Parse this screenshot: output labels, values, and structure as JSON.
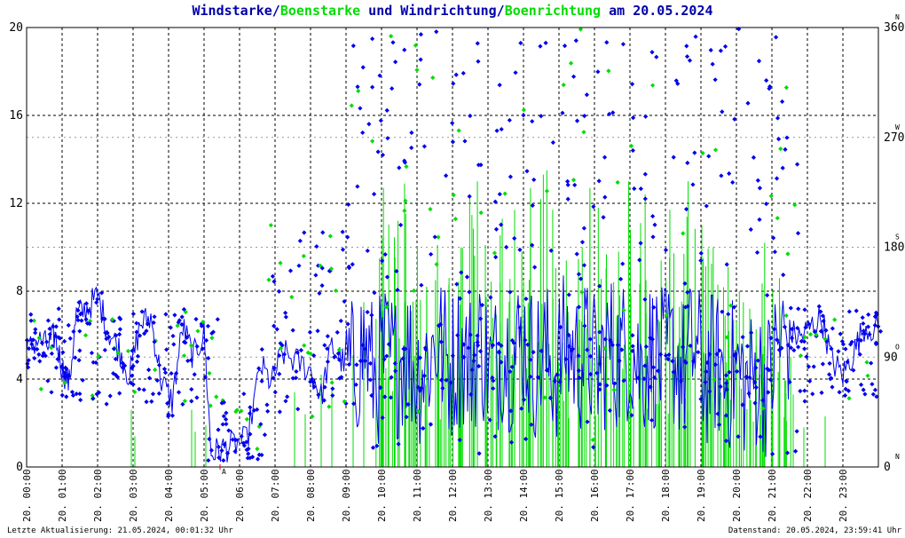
{
  "title": {
    "part1": "Windstarke",
    "sep1": "/",
    "part2": "Boenstarke",
    "part3": " und ",
    "part4": "Windrichtung",
    "sep2": "/",
    "part5": "Boenrichtung",
    "part6": " am 20.05.2024"
  },
  "colors": {
    "speed": "#0000ee",
    "gust": "#00dd00",
    "title_dark": "#0000aa",
    "grid": "#000000",
    "marker": "#ff0000"
  },
  "footer": {
    "left": "Letzte Aktualisierung: 21.05.2024, 00:01:32 Uhr",
    "right": "Datenstand: 20.05.2024, 23:59:41 Uhr"
  },
  "marker_label": "A",
  "chart_data": {
    "type": "scatter",
    "x_axis": {
      "unit": "hour",
      "range": [
        0,
        24
      ],
      "tick_labels": [
        "20. 00:00",
        "20. 01:00",
        "20. 02:00",
        "20. 03:00",
        "20. 04:00",
        "20. 05:00",
        "20. 06:00",
        "20. 07:00",
        "20. 08:00",
        "20. 09:00",
        "20. 10:00",
        "20. 11:00",
        "20. 12:00",
        "20. 13:00",
        "20. 14:00",
        "20. 15:00",
        "20. 16:00",
        "20. 17:00",
        "20. 18:00",
        "20. 19:00",
        "20. 20:00",
        "20. 21:00",
        "20. 22:00",
        "20. 23:00"
      ]
    },
    "y_left": {
      "range": [
        0,
        20
      ],
      "ticks": [
        "0",
        "4",
        "8",
        "12",
        "16",
        "20"
      ]
    },
    "y_right": {
      "range": [
        0,
        360
      ],
      "ticks": [
        "0",
        "90",
        "180",
        "270",
        "360"
      ],
      "compass": [
        "N",
        "O",
        "S",
        "W",
        "N"
      ]
    },
    "grid": true,
    "marker_hour": 5.45,
    "speed_segments": [
      [
        0.0,
        5.2
      ],
      [
        0.3,
        5.8
      ],
      [
        0.6,
        5.5
      ],
      [
        0.8,
        6.0
      ],
      [
        1.0,
        4.5
      ],
      [
        1.2,
        3.8
      ],
      [
        1.4,
        6.9
      ],
      [
        1.7,
        7.2
      ],
      [
        2.0,
        7.8
      ],
      [
        2.3,
        6.2
      ],
      [
        2.6,
        5.4
      ],
      [
        2.9,
        4.1
      ],
      [
        3.2,
        6.5
      ],
      [
        3.5,
        6.8
      ],
      [
        3.8,
        3.9
      ],
      [
        4.1,
        3.0
      ],
      [
        4.4,
        6.4
      ],
      [
        4.7,
        5.0
      ],
      [
        5.0,
        6.1
      ],
      [
        5.2,
        0.6
      ],
      [
        5.5,
        0.8
      ],
      [
        5.8,
        1.0
      ],
      [
        6.2,
        1.2
      ],
      [
        6.6,
        4.6
      ],
      [
        6.9,
        3.8
      ],
      [
        7.2,
        5.2
      ],
      [
        7.6,
        4.8
      ],
      [
        8.0,
        4.4
      ],
      [
        8.3,
        3.2
      ],
      [
        8.6,
        5.5
      ],
      [
        8.9,
        4.8
      ],
      [
        9.2,
        4.2
      ],
      [
        9.5,
        5.6
      ],
      [
        9.8,
        4.0
      ],
      [
        10.1,
        5.0
      ],
      [
        10.4,
        4.6
      ],
      [
        10.7,
        5.4
      ],
      [
        11.0,
        4.2
      ],
      [
        11.3,
        4.9
      ],
      [
        11.6,
        5.8
      ],
      [
        11.9,
        4.5
      ],
      [
        12.2,
        5.2
      ],
      [
        12.5,
        4.7
      ],
      [
        12.8,
        5.6
      ],
      [
        13.1,
        4.2
      ],
      [
        13.4,
        5.4
      ],
      [
        13.7,
        4.9
      ],
      [
        14.0,
        5.8
      ],
      [
        14.3,
        4.6
      ],
      [
        14.6,
        5.1
      ],
      [
        14.9,
        4.4
      ],
      [
        15.2,
        5.7
      ],
      [
        15.5,
        4.8
      ],
      [
        15.8,
        5.2
      ],
      [
        16.1,
        4.3
      ],
      [
        16.4,
        5.5
      ],
      [
        16.7,
        4.9
      ],
      [
        17.0,
        5.6
      ],
      [
        17.3,
        4.5
      ],
      [
        17.6,
        5.3
      ],
      [
        17.9,
        4.7
      ],
      [
        18.2,
        5.2
      ],
      [
        18.5,
        4.3
      ],
      [
        18.8,
        5.5
      ],
      [
        19.1,
        4.1
      ],
      [
        19.4,
        4.8
      ],
      [
        19.7,
        3.9
      ],
      [
        20.0,
        4.5
      ],
      [
        20.3,
        3.6
      ],
      [
        20.6,
        4.2
      ],
      [
        20.9,
        3.8
      ],
      [
        21.2,
        5.6
      ],
      [
        21.5,
        6.1
      ],
      [
        21.8,
        5.9
      ],
      [
        22.1,
        6.4
      ],
      [
        22.4,
        6.8
      ],
      [
        22.7,
        4.8
      ],
      [
        23.0,
        4.2
      ],
      [
        23.3,
        5.2
      ],
      [
        23.6,
        6.4
      ],
      [
        24.0,
        6.3
      ]
    ],
    "gust_peaks": [
      [
        9.9,
        9.5
      ],
      [
        10.1,
        12.7
      ],
      [
        10.4,
        11.2
      ],
      [
        10.7,
        12.9
      ],
      [
        11.0,
        10.0
      ],
      [
        11.3,
        8.2
      ],
      [
        11.6,
        10.1
      ],
      [
        11.9,
        8.6
      ],
      [
        12.2,
        10.0
      ],
      [
        12.6,
        13.0
      ],
      [
        13.0,
        10.1
      ],
      [
        13.3,
        11.3
      ],
      [
        13.7,
        11.7
      ],
      [
        14.0,
        9.8
      ],
      [
        14.3,
        12.7
      ],
      [
        14.6,
        13.5
      ],
      [
        14.9,
        11.7
      ],
      [
        15.2,
        9.4
      ],
      [
        15.6,
        10.0
      ],
      [
        15.9,
        12.7
      ],
      [
        16.2,
        11.8
      ],
      [
        16.6,
        9.8
      ],
      [
        16.9,
        13.0
      ],
      [
        17.2,
        11.1
      ],
      [
        17.5,
        12.4
      ],
      [
        17.8,
        9.4
      ],
      [
        18.1,
        11.7
      ],
      [
        18.4,
        9.7
      ],
      [
        18.7,
        13.0
      ],
      [
        19.0,
        11.0
      ],
      [
        19.3,
        10.0
      ],
      [
        19.6,
        8.3
      ],
      [
        19.9,
        9.1
      ],
      [
        20.2,
        8.0
      ],
      [
        20.5,
        7.2
      ],
      [
        20.8,
        10.2
      ],
      [
        21.1,
        8.6
      ],
      [
        21.4,
        5.0
      ]
    ],
    "direction_clusters": [
      {
        "from": 0.0,
        "to": 5.4,
        "deg": [
          50,
          130
        ]
      },
      {
        "from": 5.4,
        "to": 6.8,
        "deg": [
          5,
          60
        ]
      },
      {
        "from": 6.8,
        "to": 9.0,
        "deg": [
          40,
          200
        ]
      },
      {
        "from": 9.0,
        "to": 21.8,
        "deg": [
          10,
          360
        ]
      },
      {
        "from": 21.8,
        "to": 24.0,
        "deg": [
          50,
          130
        ]
      }
    ]
  }
}
